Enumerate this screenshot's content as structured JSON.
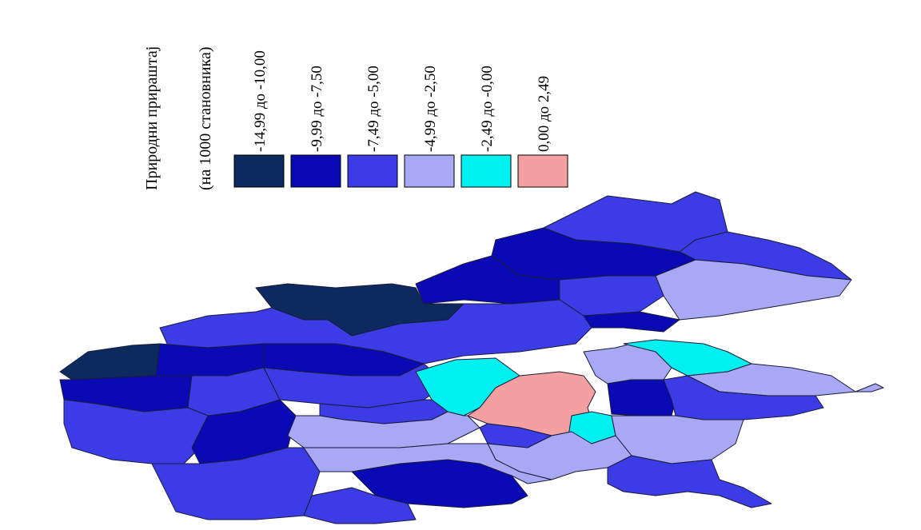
{
  "legend": {
    "title": "Природни прираштај",
    "subtitle": "(на 1000 становника)",
    "classes": [
      {
        "label": "-14,99 до -10,00",
        "color": "#0c2a5e"
      },
      {
        "label": "-9,99 до -7,50",
        "color": "#0a0ab4"
      },
      {
        "label": "-7,49 до -5,00",
        "color": "#3c3ce6"
      },
      {
        "label": "-4,99 до -2,50",
        "color": "#a8a8f4"
      },
      {
        "label": "-2,49 до -0,00",
        "color": "#00f0f0"
      },
      {
        "label": "0,00 до 2,49",
        "color": "#f4a0a0"
      }
    ]
  },
  "map": {
    "orientation": "rotated-90",
    "regions_by_class": {
      "c1": 3,
      "c2": 9,
      "c3": 14,
      "c4": 8,
      "c5": 3,
      "c6": 1
    }
  }
}
